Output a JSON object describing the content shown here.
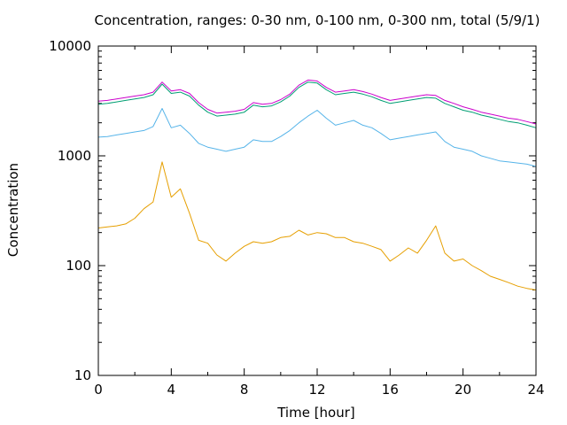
{
  "chart_data": {
    "type": "line",
    "title": "Concentration, ranges: 0-30 nm, 0-100 nm, 0-300 nm, total (5/9/1)",
    "xlabel": "Time [hour]",
    "ylabel": "Concentration",
    "xlim": [
      0,
      24
    ],
    "ylim": [
      10,
      10000
    ],
    "yscale": "log",
    "grid": false,
    "legend": "none",
    "x_ticks": [
      0,
      4,
      8,
      12,
      16,
      20,
      24
    ],
    "x_tick_labels": [
      "0",
      "4",
      "8",
      "12",
      "16",
      "20",
      "24"
    ],
    "y_ticks": [
      10,
      100,
      1000,
      10000
    ],
    "y_tick_labels": [
      "10",
      "100",
      "1000",
      "10000"
    ],
    "x": [
      0,
      0.5,
      1,
      1.5,
      2,
      2.5,
      3,
      3.5,
      4,
      4.5,
      5,
      5.5,
      6,
      6.5,
      7,
      7.5,
      8,
      8.5,
      9,
      9.5,
      10,
      10.5,
      11,
      11.5,
      12,
      12.5,
      13,
      13.5,
      14,
      14.5,
      15,
      15.5,
      16,
      16.5,
      17,
      17.5,
      18,
      18.5,
      19,
      19.5,
      20,
      20.5,
      21,
      21.5,
      22,
      22.5,
      23,
      23.5,
      24
    ],
    "series": [
      {
        "color": "#e69f00",
        "values": [
          220,
          225,
          230,
          240,
          270,
          330,
          380,
          880,
          420,
          500,
          300,
          170,
          160,
          125,
          110,
          130,
          150,
          165,
          160,
          165,
          180,
          185,
          210,
          190,
          200,
          195,
          180,
          180,
          165,
          160,
          150,
          140,
          110,
          125,
          145,
          130,
          170,
          230,
          130,
          110,
          115,
          100,
          90,
          80,
          75,
          70,
          65,
          62,
          60
        ]
      },
      {
        "color": "#56b4e9",
        "values": [
          1480,
          1500,
          1550,
          1600,
          1650,
          1700,
          1850,
          2700,
          1800,
          1900,
          1600,
          1300,
          1200,
          1150,
          1100,
          1150,
          1200,
          1400,
          1350,
          1350,
          1500,
          1700,
          2000,
          2300,
          2600,
          2200,
          1900,
          2000,
          2100,
          1900,
          1800,
          1600,
          1400,
          1450,
          1500,
          1550,
          1600,
          1650,
          1350,
          1200,
          1150,
          1100,
          1000,
          950,
          900,
          880,
          860,
          840,
          800
        ]
      },
      {
        "color": "#009e73",
        "values": [
          2950,
          3000,
          3100,
          3200,
          3300,
          3400,
          3600,
          4500,
          3700,
          3800,
          3500,
          2900,
          2500,
          2300,
          2350,
          2400,
          2500,
          2900,
          2800,
          2850,
          3100,
          3500,
          4200,
          4700,
          4600,
          4000,
          3600,
          3700,
          3800,
          3650,
          3450,
          3200,
          3000,
          3100,
          3200,
          3300,
          3400,
          3350,
          3000,
          2800,
          2600,
          2500,
          2350,
          2250,
          2150,
          2050,
          2000,
          1900,
          1800
        ]
      },
      {
        "color": "#cc00cc",
        "values": [
          3150,
          3200,
          3300,
          3400,
          3500,
          3600,
          3800,
          4700,
          3900,
          4000,
          3700,
          3050,
          2650,
          2450,
          2500,
          2550,
          2650,
          3050,
          2950,
          3000,
          3250,
          3650,
          4400,
          4900,
          4800,
          4200,
          3800,
          3900,
          4000,
          3850,
          3650,
          3400,
          3200,
          3300,
          3400,
          3500,
          3600,
          3550,
          3200,
          3000,
          2800,
          2650,
          2500,
          2400,
          2300,
          2200,
          2150,
          2050,
          1950
        ]
      }
    ]
  }
}
